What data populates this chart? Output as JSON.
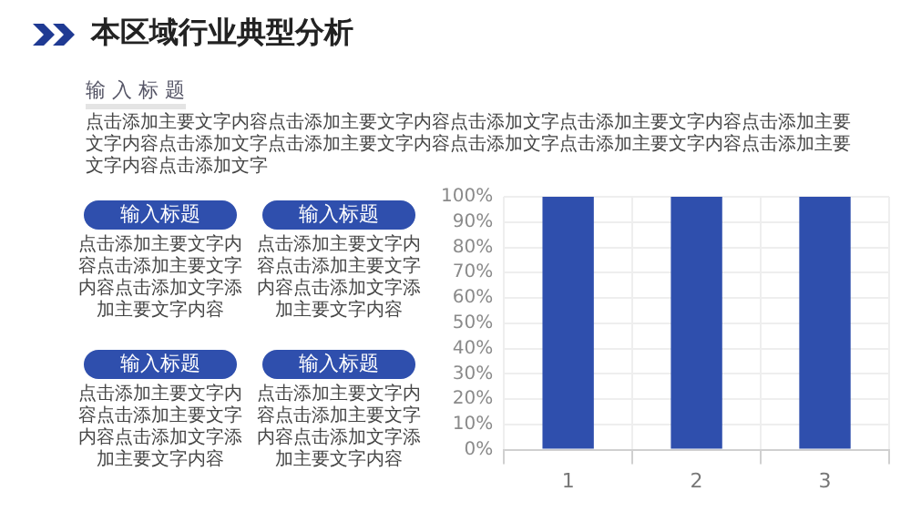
{
  "chart_data": {
    "type": "bar",
    "title": "本区域行业典型分析",
    "subtitle": "输 入 标 题",
    "annotations": [
      "点击添加主要文字内容点击添加主要文字内容点击添加文字点击添加主要文字内容点击添加主要文字内容点击添加文字点击添加主要文字内容点击添加文字点击添加主要文字内容点击添加主要文字内容点击添加文字",
      "输入标题",
      "点击添加主要文字内容点击添加主要文字内容点击添加文字添加主要文字内容",
      "输入标题",
      "点击添加主要文字内容点击添加主要文字内容点击添加文字添加主要文字内容",
      "输入标题",
      "点击添加主要文字内容点击添加主要文字内容点击添加文字添加主要文字内容",
      "输入标题",
      "点击添加主要文字内容点击添加主要文字内容点击添加文字添加主要文字内容"
    ],
    "categories": [
      "1",
      "2",
      "3"
    ],
    "values": [
      100,
      100,
      100
    ],
    "color": "#2f4fad",
    "ylim": [
      0,
      100
    ],
    "yticks": [
      {
        "value": 0,
        "label": "0%"
      },
      {
        "value": 10,
        "label": "10%"
      },
      {
        "value": 20,
        "label": "20%"
      },
      {
        "value": 30,
        "label": "30%"
      },
      {
        "value": 40,
        "label": "40%"
      },
      {
        "value": 50,
        "label": "50%"
      },
      {
        "value": 60,
        "label": "60%"
      },
      {
        "value": 70,
        "label": "70%"
      },
      {
        "value": 80,
        "label": "80%"
      },
      {
        "value": 90,
        "label": "90%"
      },
      {
        "value": 100,
        "label": "100%"
      }
    ],
    "grid": true,
    "legend": false
  }
}
